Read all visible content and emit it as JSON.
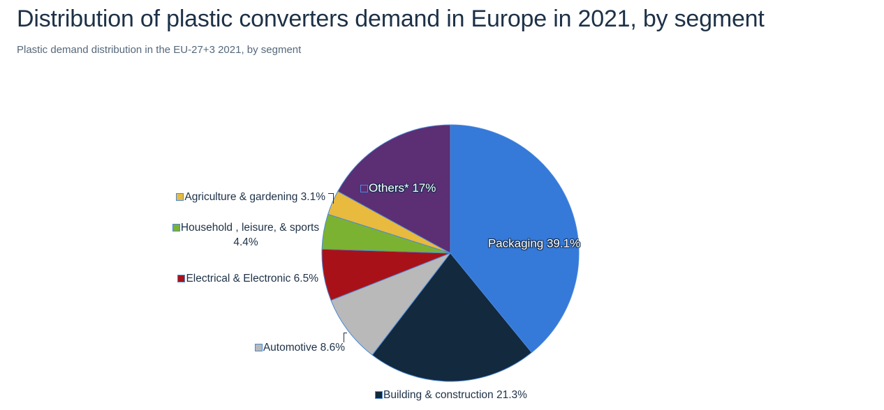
{
  "page": {
    "title": "Distribution of plastic converters demand in Europe in 2021, by segment",
    "subtitle": "Plastic demand distribution in the EU-27+3 2021, by segment",
    "colors": {
      "title_text": "#1d3147",
      "subtitle_text": "#56687a",
      "background": "#ffffff",
      "slice_border": "#4a89d9",
      "inside_label_text": "#ffffff",
      "outside_label_text": "#1d3147"
    }
  },
  "chart_data": {
    "type": "pie",
    "title": "Distribution of plastic converters demand in Europe in 2021, by segment",
    "unit": "%",
    "total": 100,
    "start_angle": "12 o'clock",
    "direction": "clockwise",
    "legend_position": "labels around and inside pie",
    "segments": [
      {
        "label": "Packaging",
        "value": 39.1,
        "display": "Packaging 39.1%",
        "color": "#3579d9",
        "label_placement": "inside"
      },
      {
        "label": "Building & construction",
        "value": 21.3,
        "display": "Building & construction 21.3%",
        "color": "#13293e",
        "label_placement": "outside"
      },
      {
        "label": "Automotive",
        "value": 8.6,
        "display": "Automotive 8.6%",
        "color": "#b9b9b9",
        "label_placement": "outside"
      },
      {
        "label": "Electrical & Electronic",
        "value": 6.5,
        "display": "Electrical & Electronic 6.5%",
        "color": "#a91118",
        "label_placement": "outside"
      },
      {
        "label": "Household , leisure, & sports",
        "value": 4.4,
        "display": "Household , leisure, & sports 4.4%",
        "color": "#7cb232",
        "label_placement": "outside"
      },
      {
        "label": "Agriculture & gardening",
        "value": 3.1,
        "display": "Agriculture & gardening 3.1%",
        "color": "#e8ba3d",
        "label_placement": "outside"
      },
      {
        "label": "Others*",
        "value": 17,
        "display": "Others* 17%",
        "color": "#5c2e74",
        "label_placement": "inside"
      }
    ]
  }
}
